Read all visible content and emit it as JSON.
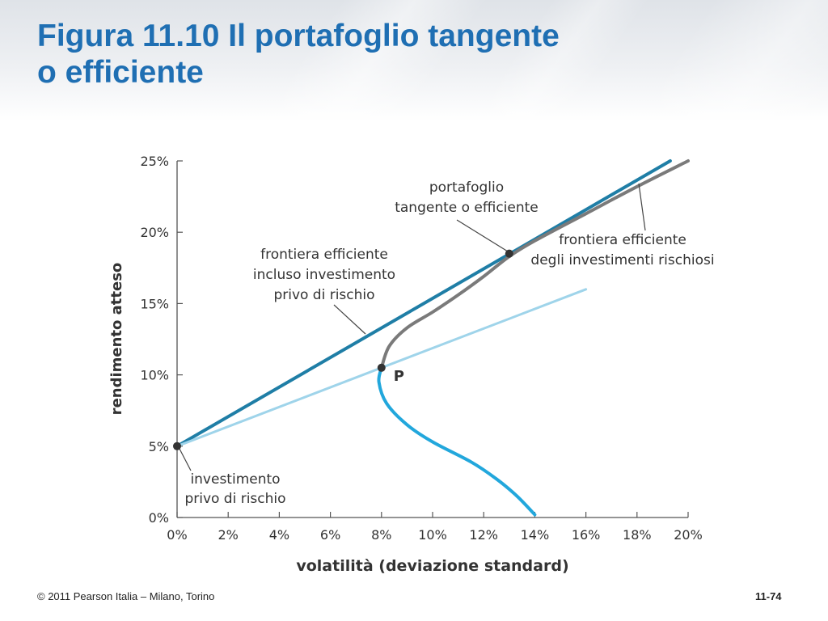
{
  "slide": {
    "title_line1": "Figura 11.10  Il portafoglio tangente",
    "title_line2": "o efficiente",
    "footer_copyright": "© 2011 Pearson Italia – Milano, Torino",
    "footer_page": "11-74",
    "title_color": "#1f6fb3"
  },
  "chart_data": {
    "type": "line",
    "xlabel": "volatilità (deviazione standard)",
    "ylabel": "rendimento atteso",
    "xlim": [
      0,
      20
    ],
    "ylim": [
      0,
      25
    ],
    "x_ticks": [
      "0%",
      "2%",
      "4%",
      "6%",
      "8%",
      "10%",
      "12%",
      "14%",
      "16%",
      "18%",
      "20%"
    ],
    "y_ticks": [
      "0%",
      "5%",
      "10%",
      "15%",
      "20%",
      "25%"
    ],
    "series": [
      {
        "key": "efficient_frontier_riskfree",
        "color": "#1f7ea6",
        "points": [
          [
            0,
            5
          ],
          [
            19.3,
            25.0
          ]
        ]
      },
      {
        "key": "line_through_p",
        "color": "#9fd4ea",
        "points": [
          [
            0,
            5
          ],
          [
            16.0,
            16.0
          ]
        ]
      },
      {
        "key": "risky_frontier_upper",
        "color": "#7a7a7a",
        "points": [
          [
            8.0,
            10.5
          ],
          [
            8.3,
            12.0
          ],
          [
            9.0,
            13.3
          ],
          [
            10.0,
            14.4
          ],
          [
            11.0,
            15.6
          ],
          [
            12.0,
            16.9
          ],
          [
            13.0,
            18.3
          ],
          [
            14.0,
            19.4
          ],
          [
            16.0,
            21.3
          ],
          [
            18.0,
            23.2
          ],
          [
            20.0,
            25.0
          ]
        ]
      },
      {
        "key": "risky_frontier_lower",
        "color": "#22a7dc",
        "points": [
          [
            8.0,
            10.5
          ],
          [
            7.9,
            9.5
          ],
          [
            8.2,
            8.0
          ],
          [
            9.0,
            6.5
          ],
          [
            10.0,
            5.3
          ],
          [
            11.5,
            3.9
          ],
          [
            12.5,
            2.7
          ],
          [
            13.3,
            1.5
          ],
          [
            14.0,
            0.2
          ]
        ]
      }
    ],
    "points": [
      {
        "key": "risk_free",
        "x": 0,
        "y": 5
      },
      {
        "key": "P",
        "label": "P",
        "x": 8.0,
        "y": 10.5
      },
      {
        "key": "tangent",
        "x": 13.0,
        "y": 18.5
      }
    ],
    "annotations": {
      "tangent_portfolio": [
        "portafoglio",
        "tangente o efficiente"
      ],
      "efficient_frontier_riskfree": [
        "frontiera efficiente",
        "incluso investimento",
        "privo di rischio"
      ],
      "risky_frontier": [
        "frontiera efficiente",
        "degli investimenti rischiosi"
      ],
      "risk_free_asset": [
        "investimento",
        "privo di rischio"
      ]
    }
  }
}
